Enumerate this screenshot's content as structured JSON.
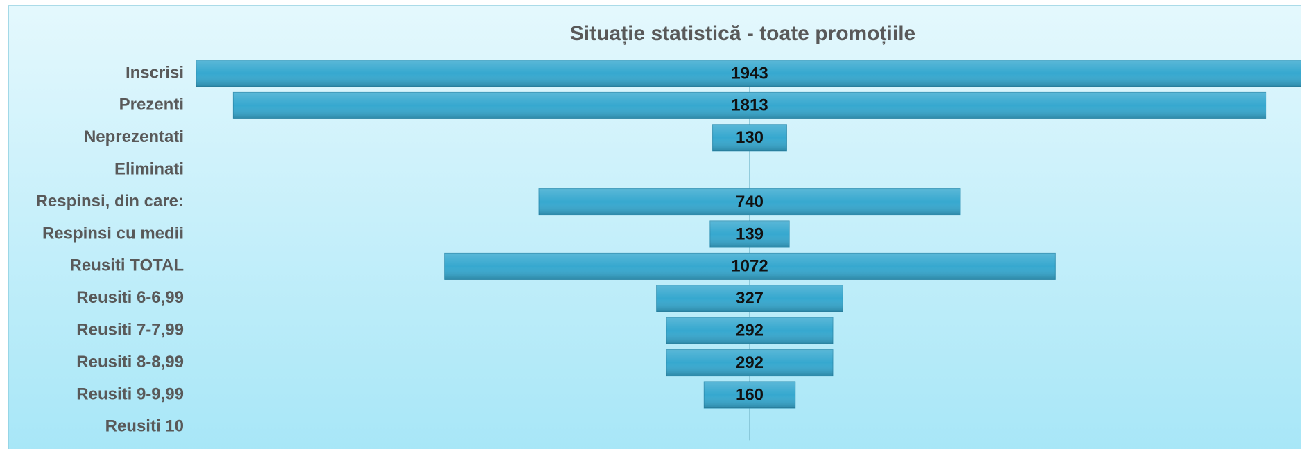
{
  "chart_data": {
    "type": "funnel",
    "title": "Situație statistică - toate promoțiile",
    "categories": [
      "Inscrisi",
      "Prezenti",
      "Neprezentati",
      "Eliminati",
      "Respinsi, din care:",
      "Respinsi cu medii",
      "Reusiti TOTAL",
      "Reusiti 6-6,99",
      "Reusiti 7-7,99",
      "Reusiti 8-8,99",
      "Reusiti 9-9,99",
      "Reusiti 10"
    ],
    "values": [
      1943,
      1813,
      130,
      null,
      740,
      139,
      1072,
      327,
      292,
      292,
      160,
      null
    ],
    "color": "#36a8cf"
  }
}
